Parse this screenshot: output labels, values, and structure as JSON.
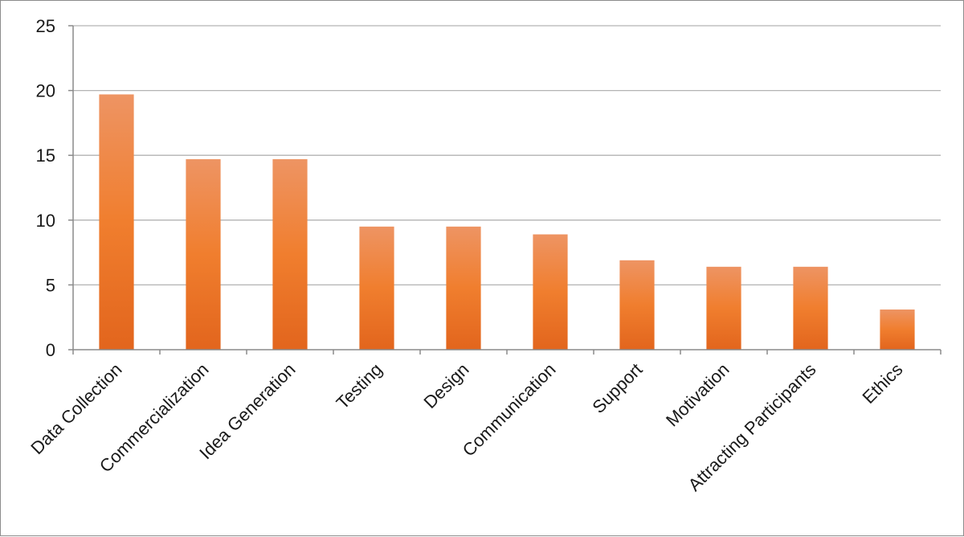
{
  "chart_data": {
    "type": "bar",
    "title": "",
    "xlabel": "",
    "ylabel": "",
    "categories": [
      "Data Collection",
      "Commercialization",
      "Idea Generation",
      "Testing",
      "Design",
      "Communication",
      "Support",
      "Motivation",
      "Attracting Participants",
      "Ethics"
    ],
    "values": [
      19.7,
      14.7,
      14.7,
      9.5,
      9.5,
      8.9,
      6.9,
      6.4,
      6.4,
      3.1
    ],
    "ylim": [
      0,
      25
    ],
    "yticks": [
      0,
      5,
      10,
      15,
      20,
      25
    ],
    "grid": true,
    "legend": "none",
    "bar_color_top": "#ee9463",
    "bar_color_mid": "#f07e2e",
    "bar_color_bottom": "#e2651d"
  }
}
